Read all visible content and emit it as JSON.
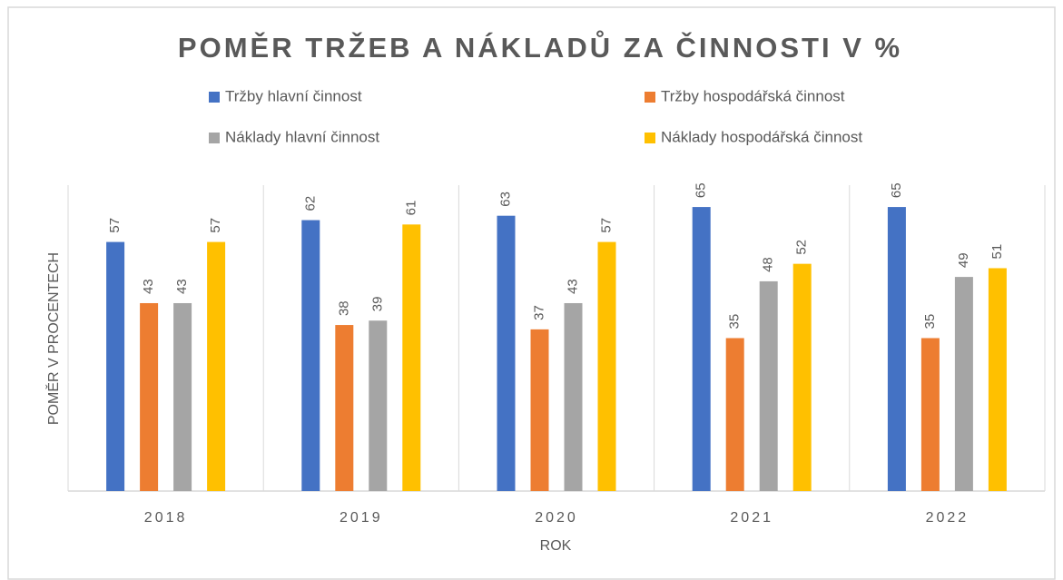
{
  "chart_data": {
    "type": "bar",
    "title": "POMĚR TRŽEB A NÁKLADŮ ZA ČINNOSTI V %",
    "x_label": "ROK",
    "y_label": "POMĚR V PROCENTECH",
    "categories": [
      "2018",
      "2019",
      "2020",
      "2021",
      "2022"
    ],
    "series": [
      {
        "name": "Tržby hlavní činnost",
        "color": "#4472c4",
        "values": [
          57,
          62,
          63,
          65,
          65
        ]
      },
      {
        "name": "Tržby hospodářská činnost",
        "color": "#ed7d31",
        "values": [
          43,
          38,
          37,
          35,
          35
        ]
      },
      {
        "name": "Náklady hlavní činnost",
        "color": "#a5a5a5",
        "values": [
          43,
          39,
          43,
          48,
          49
        ]
      },
      {
        "name": "Náklady hospodářská činnost",
        "color": "#ffc000",
        "values": [
          57,
          61,
          57,
          52,
          51
        ]
      }
    ],
    "ylim": [
      0,
      70
    ],
    "legend": "top",
    "data_labels": true
  }
}
